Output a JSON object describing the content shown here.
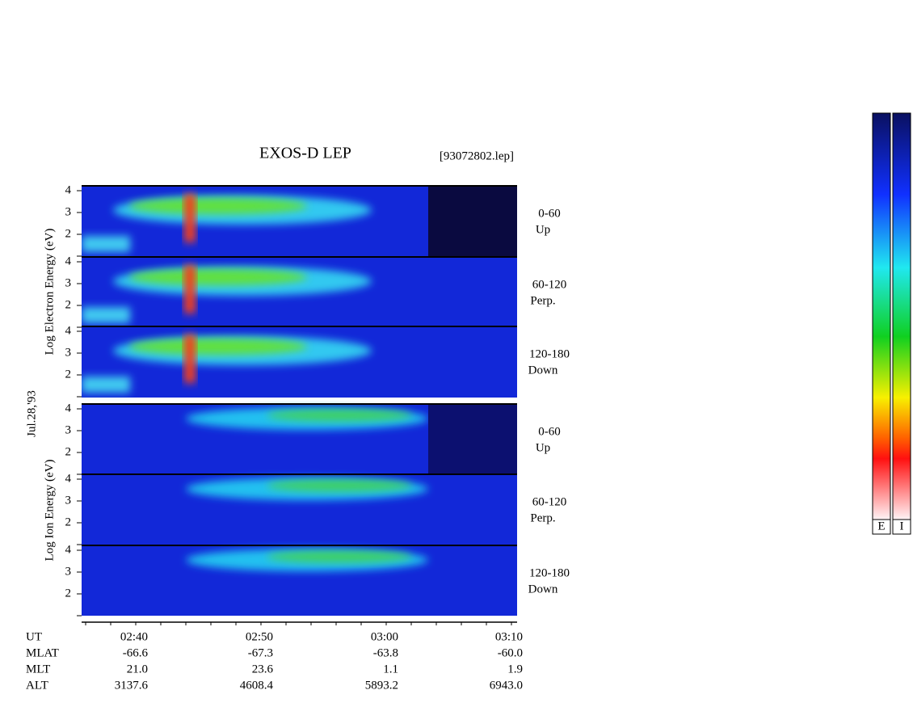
{
  "header": {
    "title": "EXOS-D LEP",
    "file": "[93072802.lep]"
  },
  "date": "Jul.28,'93",
  "groups": [
    {
      "label": "Log Electron Energy (eV)",
      "panels": [
        {
          "pitch": "0-60",
          "direction": "Up"
        },
        {
          "pitch": "60-120",
          "direction": "Perp."
        },
        {
          "pitch": "120-180",
          "direction": "Down"
        }
      ]
    },
    {
      "label": "Log Ion Energy (eV)",
      "panels": [
        {
          "pitch": "0-60",
          "direction": "Up"
        },
        {
          "pitch": "60-120",
          "direction": "Perp."
        },
        {
          "pitch": "120-180",
          "direction": "Down"
        }
      ]
    }
  ],
  "energy_ticks": [
    2,
    3,
    4
  ],
  "orbit": {
    "rows": [
      {
        "label": "UT",
        "values": [
          "02:40",
          "02:50",
          "03:00",
          "03:10"
        ]
      },
      {
        "label": "MLAT",
        "values": [
          "-66.6",
          "-67.3",
          "-63.8",
          "-60.0"
        ]
      },
      {
        "label": "MLT",
        "values": [
          "21.0",
          "23.6",
          "1.1",
          "1.9"
        ]
      },
      {
        "label": "ALT",
        "values": [
          "3137.6",
          "4608.4",
          "5893.2",
          "6943.0"
        ]
      }
    ]
  },
  "colorbars": [
    "E",
    "I"
  ]
}
